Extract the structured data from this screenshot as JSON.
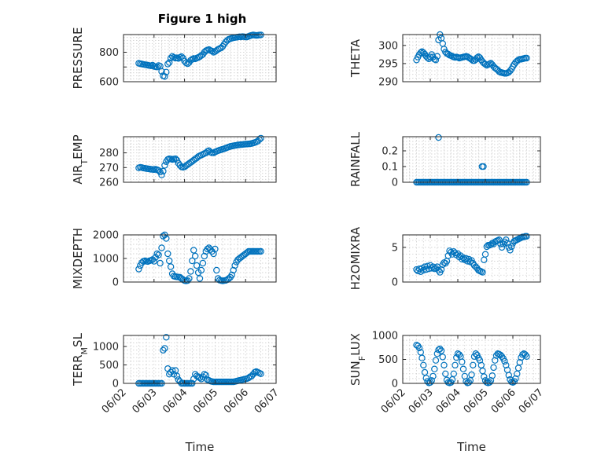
{
  "figure": {
    "title": "Figure 1 high",
    "marker_color": "#0072BD",
    "grid": "on, dotted minor",
    "date_ticks": [
      "06/02",
      "06/03",
      "06/04",
      "06/05",
      "06/06",
      "06/07"
    ],
    "xlabel": "Time"
  },
  "chart_data": [
    {
      "type": "scatter",
      "id": "pressure",
      "ylabel": "PRESSURE",
      "xlim": [
        "06/02",
        "06/07"
      ],
      "ylim": [
        600,
        920
      ],
      "yticks": [
        600,
        700,
        800
      ],
      "ytick_labels": [
        "600",
        "",
        "800"
      ],
      "x_days": [
        0.5,
        0.55,
        0.6,
        0.65,
        0.7,
        0.75,
        0.8,
        0.85,
        0.9,
        0.95,
        1.0,
        1.05,
        1.1,
        1.15,
        1.2,
        1.25,
        1.3,
        1.35,
        1.4,
        1.45,
        1.5,
        1.55,
        1.6,
        1.65,
        1.7,
        1.75,
        1.8,
        1.85,
        1.9,
        1.95,
        2.0,
        2.05,
        2.1,
        2.15,
        2.2,
        2.25,
        2.3,
        2.35,
        2.4,
        2.45,
        2.5,
        2.55,
        2.6,
        2.65,
        2.7,
        2.75,
        2.8,
        2.85,
        2.9,
        2.95,
        3.0,
        3.05,
        3.1,
        3.15,
        3.2,
        3.25,
        3.3,
        3.35,
        3.4,
        3.45,
        3.5,
        3.55,
        3.6,
        3.65,
        3.7,
        3.75,
        3.8,
        3.85,
        3.9,
        3.95,
        4.0,
        4.05,
        4.1,
        4.15,
        4.2,
        4.25,
        4.3,
        4.35,
        4.4,
        4.45,
        4.5
      ],
      "values": [
        725,
        722,
        720,
        718,
        716,
        714,
        712,
        710,
        708,
        712,
        704,
        702,
        700,
        710,
        705,
        670,
        640,
        635,
        665,
        720,
        730,
        760,
        772,
        765,
        760,
        762,
        758,
        765,
        770,
        760,
        740,
        728,
        722,
        730,
        745,
        752,
        758,
        755,
        760,
        765,
        770,
        778,
        785,
        800,
        810,
        815,
        818,
        812,
        808,
        800,
        805,
        812,
        820,
        825,
        830,
        840,
        855,
        870,
        880,
        888,
        892,
        895,
        898,
        900,
        902,
        903,
        905,
        904,
        906,
        905,
        903,
        904,
        908,
        912,
        915,
        918,
        916,
        914,
        915,
        917,
        918
      ]
    },
    {
      "type": "scatter",
      "id": "theta",
      "ylabel": "THETA",
      "xlim": [
        "06/02",
        "06/07"
      ],
      "ylim": [
        290,
        303
      ],
      "yticks": [
        290,
        295,
        300
      ],
      "ytick_labels": [
        "290",
        "295",
        "300"
      ],
      "x_days": [
        0.5,
        0.55,
        0.6,
        0.65,
        0.7,
        0.75,
        0.8,
        0.85,
        0.9,
        0.95,
        1.0,
        1.05,
        1.1,
        1.15,
        1.2,
        1.25,
        1.3,
        1.35,
        1.4,
        1.45,
        1.5,
        1.55,
        1.6,
        1.65,
        1.7,
        1.75,
        1.8,
        1.85,
        1.9,
        1.95,
        2.0,
        2.05,
        2.1,
        2.15,
        2.2,
        2.25,
        2.3,
        2.35,
        2.4,
        2.45,
        2.5,
        2.55,
        2.6,
        2.65,
        2.7,
        2.75,
        2.8,
        2.85,
        2.9,
        2.95,
        3.0,
        3.05,
        3.1,
        3.15,
        3.2,
        3.25,
        3.3,
        3.35,
        3.4,
        3.45,
        3.5,
        3.55,
        3.6,
        3.65,
        3.7,
        3.75,
        3.8,
        3.85,
        3.9,
        3.95,
        4.0,
        4.05,
        4.1,
        4.15,
        4.2,
        4.25,
        4.3,
        4.35,
        4.4,
        4.45,
        4.5
      ],
      "values": [
        296,
        296.8,
        297.5,
        298,
        298.3,
        298,
        297.6,
        297,
        296.6,
        296.3,
        296.8,
        297.5,
        296.8,
        296.2,
        296,
        297,
        301.5,
        303,
        302,
        300.5,
        299,
        298.2,
        297.8,
        297.6,
        297.3,
        297.2,
        297,
        296.8,
        296.7,
        296.8,
        296.7,
        296.5,
        296.6,
        296.7,
        296.8,
        296.9,
        297,
        296.9,
        296.6,
        296.4,
        296.1,
        295.8,
        295.8,
        296.1,
        296.6,
        296.9,
        296.6,
        296,
        295.5,
        295.1,
        294.8,
        294.5,
        294.7,
        294.9,
        295.1,
        294.7,
        294.2,
        293.8,
        293.5,
        293.2,
        292.8,
        292.6,
        292.5,
        292.4,
        292.3,
        292.3,
        292.4,
        292.6,
        293,
        293.5,
        294.2,
        294.8,
        295.3,
        295.7,
        296,
        296.2,
        296.2,
        296.3,
        296.4,
        296.5,
        296.5
      ]
    },
    {
      "type": "scatter",
      "id": "airtemp",
      "ylabel": "AIR_TEMP",
      "xlim": [
        "06/02",
        "06/07"
      ],
      "ylim": [
        260,
        291
      ],
      "yticks": [
        260,
        270,
        280
      ],
      "ytick_labels": [
        "260",
        "270",
        "280"
      ],
      "x_days": [
        0.5,
        0.55,
        0.6,
        0.65,
        0.7,
        0.75,
        0.8,
        0.85,
        0.9,
        0.95,
        1.0,
        1.05,
        1.1,
        1.15,
        1.2,
        1.25,
        1.3,
        1.35,
        1.4,
        1.45,
        1.5,
        1.55,
        1.6,
        1.65,
        1.7,
        1.75,
        1.8,
        1.85,
        1.9,
        1.95,
        2.0,
        2.05,
        2.1,
        2.15,
        2.2,
        2.25,
        2.3,
        2.35,
        2.4,
        2.45,
        2.5,
        2.55,
        2.6,
        2.65,
        2.7,
        2.75,
        2.8,
        2.85,
        2.9,
        2.95,
        3.0,
        3.05,
        3.1,
        3.15,
        3.2,
        3.25,
        3.3,
        3.35,
        3.4,
        3.45,
        3.5,
        3.55,
        3.6,
        3.65,
        3.7,
        3.75,
        3.8,
        3.85,
        3.9,
        3.95,
        4.0,
        4.05,
        4.1,
        4.15,
        4.2,
        4.25,
        4.3,
        4.35,
        4.4,
        4.45,
        4.5
      ],
      "values": [
        269.8,
        270.2,
        270,
        269.7,
        269.5,
        269.3,
        269.2,
        269,
        268.8,
        268.7,
        268.6,
        268.8,
        268.5,
        268,
        267,
        265,
        267.5,
        271.5,
        274,
        275.5,
        276,
        275.8,
        275.5,
        275.8,
        276,
        275,
        273,
        271.5,
        270.5,
        270.2,
        270.5,
        271.2,
        272,
        272.8,
        273.5,
        274.2,
        275,
        275.8,
        276.5,
        277.5,
        278,
        278.5,
        279,
        279.5,
        280,
        281,
        281.5,
        280.5,
        280,
        280,
        280.6,
        281,
        281.5,
        281.8,
        282.2,
        282.5,
        282.8,
        283.2,
        283.6,
        284,
        284.4,
        284.6,
        284.8,
        285,
        285.2,
        285.4,
        285.5,
        285.6,
        285.7,
        285.8,
        285.9,
        286,
        286.1,
        286.2,
        286.4,
        286.7,
        287,
        287.4,
        288,
        289,
        290
      ]
    },
    {
      "type": "scatter",
      "id": "rainfall",
      "ylabel": "RAINFALL",
      "xlim": [
        "06/02",
        "06/07"
      ],
      "ylim": [
        0,
        0.29
      ],
      "yticks": [
        0,
        0.1,
        0.2
      ],
      "ytick_labels": [
        "0",
        "0.1",
        "0.2"
      ],
      "nonzero_points": [
        {
          "x_day": 1.3,
          "value": 0.285
        },
        {
          "x_day": 2.88,
          "value": 0.1
        },
        {
          "x_day": 2.93,
          "value": 0.1
        }
      ],
      "zero_range_days": [
        0.5,
        4.5
      ]
    },
    {
      "type": "scatter",
      "id": "mixdepth",
      "ylabel": "MIXDEPTH",
      "xlim": [
        "06/02",
        "06/07"
      ],
      "ylim": [
        0,
        2000
      ],
      "yticks": [
        0,
        1000,
        2000
      ],
      "ytick_labels": [
        "0",
        "1000",
        "2000"
      ],
      "x_days": [
        0.5,
        0.55,
        0.6,
        0.65,
        0.7,
        0.75,
        0.8,
        0.85,
        0.9,
        0.95,
        1.0,
        1.05,
        1.1,
        1.15,
        1.2,
        1.25,
        1.3,
        1.35,
        1.4,
        1.45,
        1.5,
        1.55,
        1.6,
        1.65,
        1.7,
        1.75,
        1.8,
        1.85,
        1.9,
        1.95,
        2.0,
        2.05,
        2.1,
        2.15,
        2.2,
        2.25,
        2.3,
        2.35,
        2.4,
        2.45,
        2.5,
        2.55,
        2.6,
        2.65,
        2.7,
        2.75,
        2.8,
        2.85,
        2.9,
        2.95,
        3.0,
        3.05,
        3.1,
        3.15,
        3.2,
        3.25,
        3.3,
        3.35,
        3.4,
        3.45,
        3.5,
        3.55,
        3.6,
        3.65,
        3.7,
        3.75,
        3.8,
        3.85,
        3.9,
        3.95,
        4.0,
        4.05,
        4.1,
        4.15,
        4.2,
        4.25,
        4.3,
        4.35,
        4.4,
        4.45,
        4.5
      ],
      "values": [
        550,
        700,
        820,
        880,
        900,
        880,
        870,
        900,
        920,
        950,
        880,
        1050,
        1200,
        1150,
        800,
        1450,
        1950,
        2000,
        1850,
        1200,
        900,
        650,
        350,
        250,
        230,
        220,
        210,
        200,
        150,
        100,
        60,
        50,
        60,
        150,
        450,
        900,
        1350,
        1100,
        700,
        400,
        150,
        500,
        800,
        1100,
        1300,
        1400,
        1450,
        1380,
        1300,
        1200,
        1400,
        500,
        150,
        80,
        60,
        50,
        60,
        70,
        100,
        150,
        200,
        300,
        500,
        700,
        850,
        950,
        1000,
        1050,
        1100,
        1150,
        1200,
        1250,
        1300,
        1300,
        1300,
        1300,
        1300,
        1300,
        1300,
        1300,
        1300
      ]
    },
    {
      "type": "scatter",
      "id": "h2omixra",
      "ylabel": "H2OMIXRA",
      "xlim": [
        "06/02",
        "06/07"
      ],
      "ylim": [
        0,
        6.8
      ],
      "yticks": [
        0,
        5
      ],
      "ytick_labels": [
        "0",
        "5"
      ],
      "x_days": [
        0.5,
        0.55,
        0.6,
        0.65,
        0.7,
        0.75,
        0.8,
        0.85,
        0.9,
        0.95,
        1.0,
        1.05,
        1.1,
        1.15,
        1.2,
        1.25,
        1.3,
        1.35,
        1.4,
        1.45,
        1.5,
        1.55,
        1.6,
        1.65,
        1.7,
        1.75,
        1.8,
        1.85,
        1.9,
        1.95,
        2.0,
        2.05,
        2.1,
        2.15,
        2.2,
        2.25,
        2.3,
        2.35,
        2.4,
        2.45,
        2.5,
        2.55,
        2.6,
        2.65,
        2.7,
        2.75,
        2.8,
        2.85,
        2.9,
        2.95,
        3.0,
        3.05,
        3.1,
        3.15,
        3.2,
        3.25,
        3.3,
        3.35,
        3.4,
        3.45,
        3.5,
        3.55,
        3.6,
        3.65,
        3.7,
        3.75,
        3.8,
        3.85,
        3.9,
        3.95,
        4.0,
        4.05,
        4.1,
        4.15,
        4.2,
        4.25,
        4.3,
        4.35,
        4.4,
        4.45,
        4.5
      ],
      "values": [
        1.8,
        1.6,
        1.9,
        1.5,
        2.0,
        1.7,
        2.2,
        1.8,
        2.3,
        1.9,
        2.4,
        2.0,
        2.2,
        1.9,
        2.0,
        2.2,
        1.7,
        1.4,
        1.8,
        2.5,
        2.8,
        2.7,
        3.0,
        3.8,
        4.5,
        4.3,
        4.0,
        4.4,
        4.2,
        3.9,
        4.1,
        3.6,
        3.8,
        3.3,
        3.5,
        3.2,
        3.4,
        3.0,
        3.3,
        2.9,
        3.1,
        2.7,
        2.4,
        2.2,
        2.0,
        1.7,
        1.6,
        1.5,
        1.4,
        3.2,
        4.0,
        5.1,
        5.3,
        5.3,
        5.4,
        5.6,
        5.5,
        5.8,
        5.9,
        6.0,
        6.1,
        5.5,
        5.0,
        5.5,
        5.8,
        6.1,
        5.6,
        5.0,
        4.6,
        5.1,
        5.6,
        5.9,
        6.0,
        6.1,
        6.2,
        6.3,
        6.4,
        6.5,
        6.5,
        6.6,
        6.6
      ]
    },
    {
      "type": "scatter",
      "id": "terrmsl",
      "ylabel": "TERR_MSL",
      "xlim": [
        "06/02",
        "06/07"
      ],
      "ylim": [
        0,
        1300
      ],
      "yticks": [
        0,
        500,
        1000
      ],
      "ytick_labels": [
        "0",
        "500",
        "1000"
      ],
      "x_days": [
        0.5,
        0.55,
        0.6,
        0.65,
        0.7,
        0.75,
        0.8,
        0.85,
        0.9,
        0.95,
        1.0,
        1.05,
        1.1,
        1.15,
        1.2,
        1.25,
        1.3,
        1.35,
        1.4,
        1.45,
        1.5,
        1.55,
        1.6,
        1.65,
        1.7,
        1.75,
        1.8,
        1.85,
        1.9,
        1.95,
        2.0,
        2.05,
        2.1,
        2.15,
        2.2,
        2.25,
        2.3,
        2.35,
        2.4,
        2.45,
        2.5,
        2.55,
        2.6,
        2.65,
        2.7,
        2.75,
        2.8,
        2.85,
        2.9,
        2.95,
        3.0,
        3.05,
        3.1,
        3.15,
        3.2,
        3.25,
        3.3,
        3.35,
        3.4,
        3.45,
        3.5,
        3.55,
        3.6,
        3.65,
        3.7,
        3.75,
        3.8,
        3.85,
        3.9,
        3.95,
        4.0,
        4.05,
        4.1,
        4.15,
        4.2,
        4.25,
        4.3,
        4.35,
        4.4,
        4.45,
        4.5
      ],
      "values": [
        0,
        0,
        0,
        0,
        0,
        0,
        0,
        0,
        0,
        0,
        0,
        0,
        0,
        0,
        0,
        0,
        900,
        950,
        1250,
        400,
        250,
        300,
        350,
        250,
        350,
        200,
        100,
        50,
        0,
        0,
        0,
        0,
        0,
        0,
        0,
        0,
        120,
        250,
        200,
        180,
        150,
        120,
        180,
        250,
        220,
        100,
        80,
        60,
        50,
        40,
        40,
        40,
        40,
        40,
        40,
        40,
        40,
        40,
        40,
        40,
        40,
        40,
        40,
        50,
        60,
        70,
        80,
        90,
        100,
        110,
        120,
        130,
        150,
        180,
        200,
        250,
        300,
        320,
        300,
        280,
        260
      ]
    },
    {
      "type": "scatter",
      "id": "sunflux",
      "ylabel": "SUN_FLUX",
      "xlim": [
        "06/02",
        "06/07"
      ],
      "ylim": [
        0,
        1000
      ],
      "yticks": [
        0,
        500,
        1000
      ],
      "ytick_labels": [
        "0",
        "500",
        "1000"
      ],
      "x_days": [
        0.5,
        0.55,
        0.6,
        0.65,
        0.7,
        0.75,
        0.8,
        0.85,
        0.9,
        0.95,
        1.0,
        1.05,
        1.1,
        1.15,
        1.2,
        1.25,
        1.3,
        1.35,
        1.4,
        1.45,
        1.5,
        1.55,
        1.6,
        1.65,
        1.7,
        1.75,
        1.8,
        1.85,
        1.9,
        1.95,
        2.0,
        2.05,
        2.1,
        2.15,
        2.2,
        2.25,
        2.3,
        2.35,
        2.4,
        2.45,
        2.5,
        2.55,
        2.6,
        2.65,
        2.7,
        2.75,
        2.8,
        2.85,
        2.9,
        2.95,
        3.0,
        3.05,
        3.1,
        3.15,
        3.2,
        3.25,
        3.3,
        3.35,
        3.4,
        3.45,
        3.5,
        3.55,
        3.6,
        3.65,
        3.7,
        3.75,
        3.8,
        3.85,
        3.9,
        3.95,
        4.0,
        4.05,
        4.1,
        4.15,
        4.2,
        4.25,
        4.3,
        4.35,
        4.4,
        4.45,
        4.5
      ],
      "values": [
        800,
        780,
        740,
        650,
        530,
        380,
        230,
        110,
        40,
        10,
        20,
        60,
        150,
        300,
        480,
        620,
        700,
        720,
        680,
        550,
        380,
        200,
        70,
        20,
        10,
        20,
        80,
        200,
        380,
        540,
        620,
        600,
        560,
        450,
        300,
        150,
        40,
        10,
        20,
        60,
        180,
        380,
        560,
        620,
        590,
        530,
        480,
        380,
        260,
        140,
        60,
        20,
        10,
        20,
        60,
        160,
        330,
        480,
        580,
        620,
        610,
        590,
        560,
        520,
        460,
        380,
        280,
        170,
        80,
        30,
        20,
        40,
        100,
        200,
        320,
        440,
        540,
        600,
        620,
        600,
        560
      ]
    }
  ]
}
